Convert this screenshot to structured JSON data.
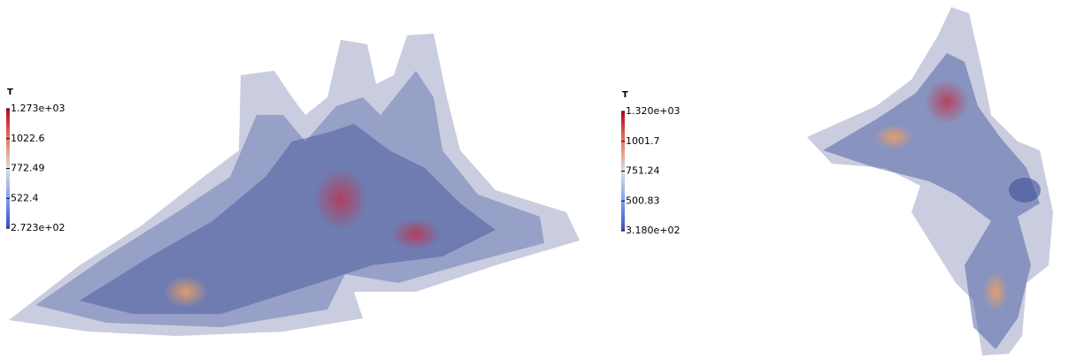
{
  "panels": [
    {
      "colorbar": {
        "title": "T",
        "labels": [
          "1.273e+03",
          "1022.6",
          "772.49",
          "522.4",
          "2.723e+02"
        ]
      }
    },
    {
      "colorbar": {
        "title": "T",
        "labels": [
          "1.320e+03",
          "1001.7",
          "751.24",
          "500.83",
          "3.180e+02"
        ]
      }
    }
  ]
}
